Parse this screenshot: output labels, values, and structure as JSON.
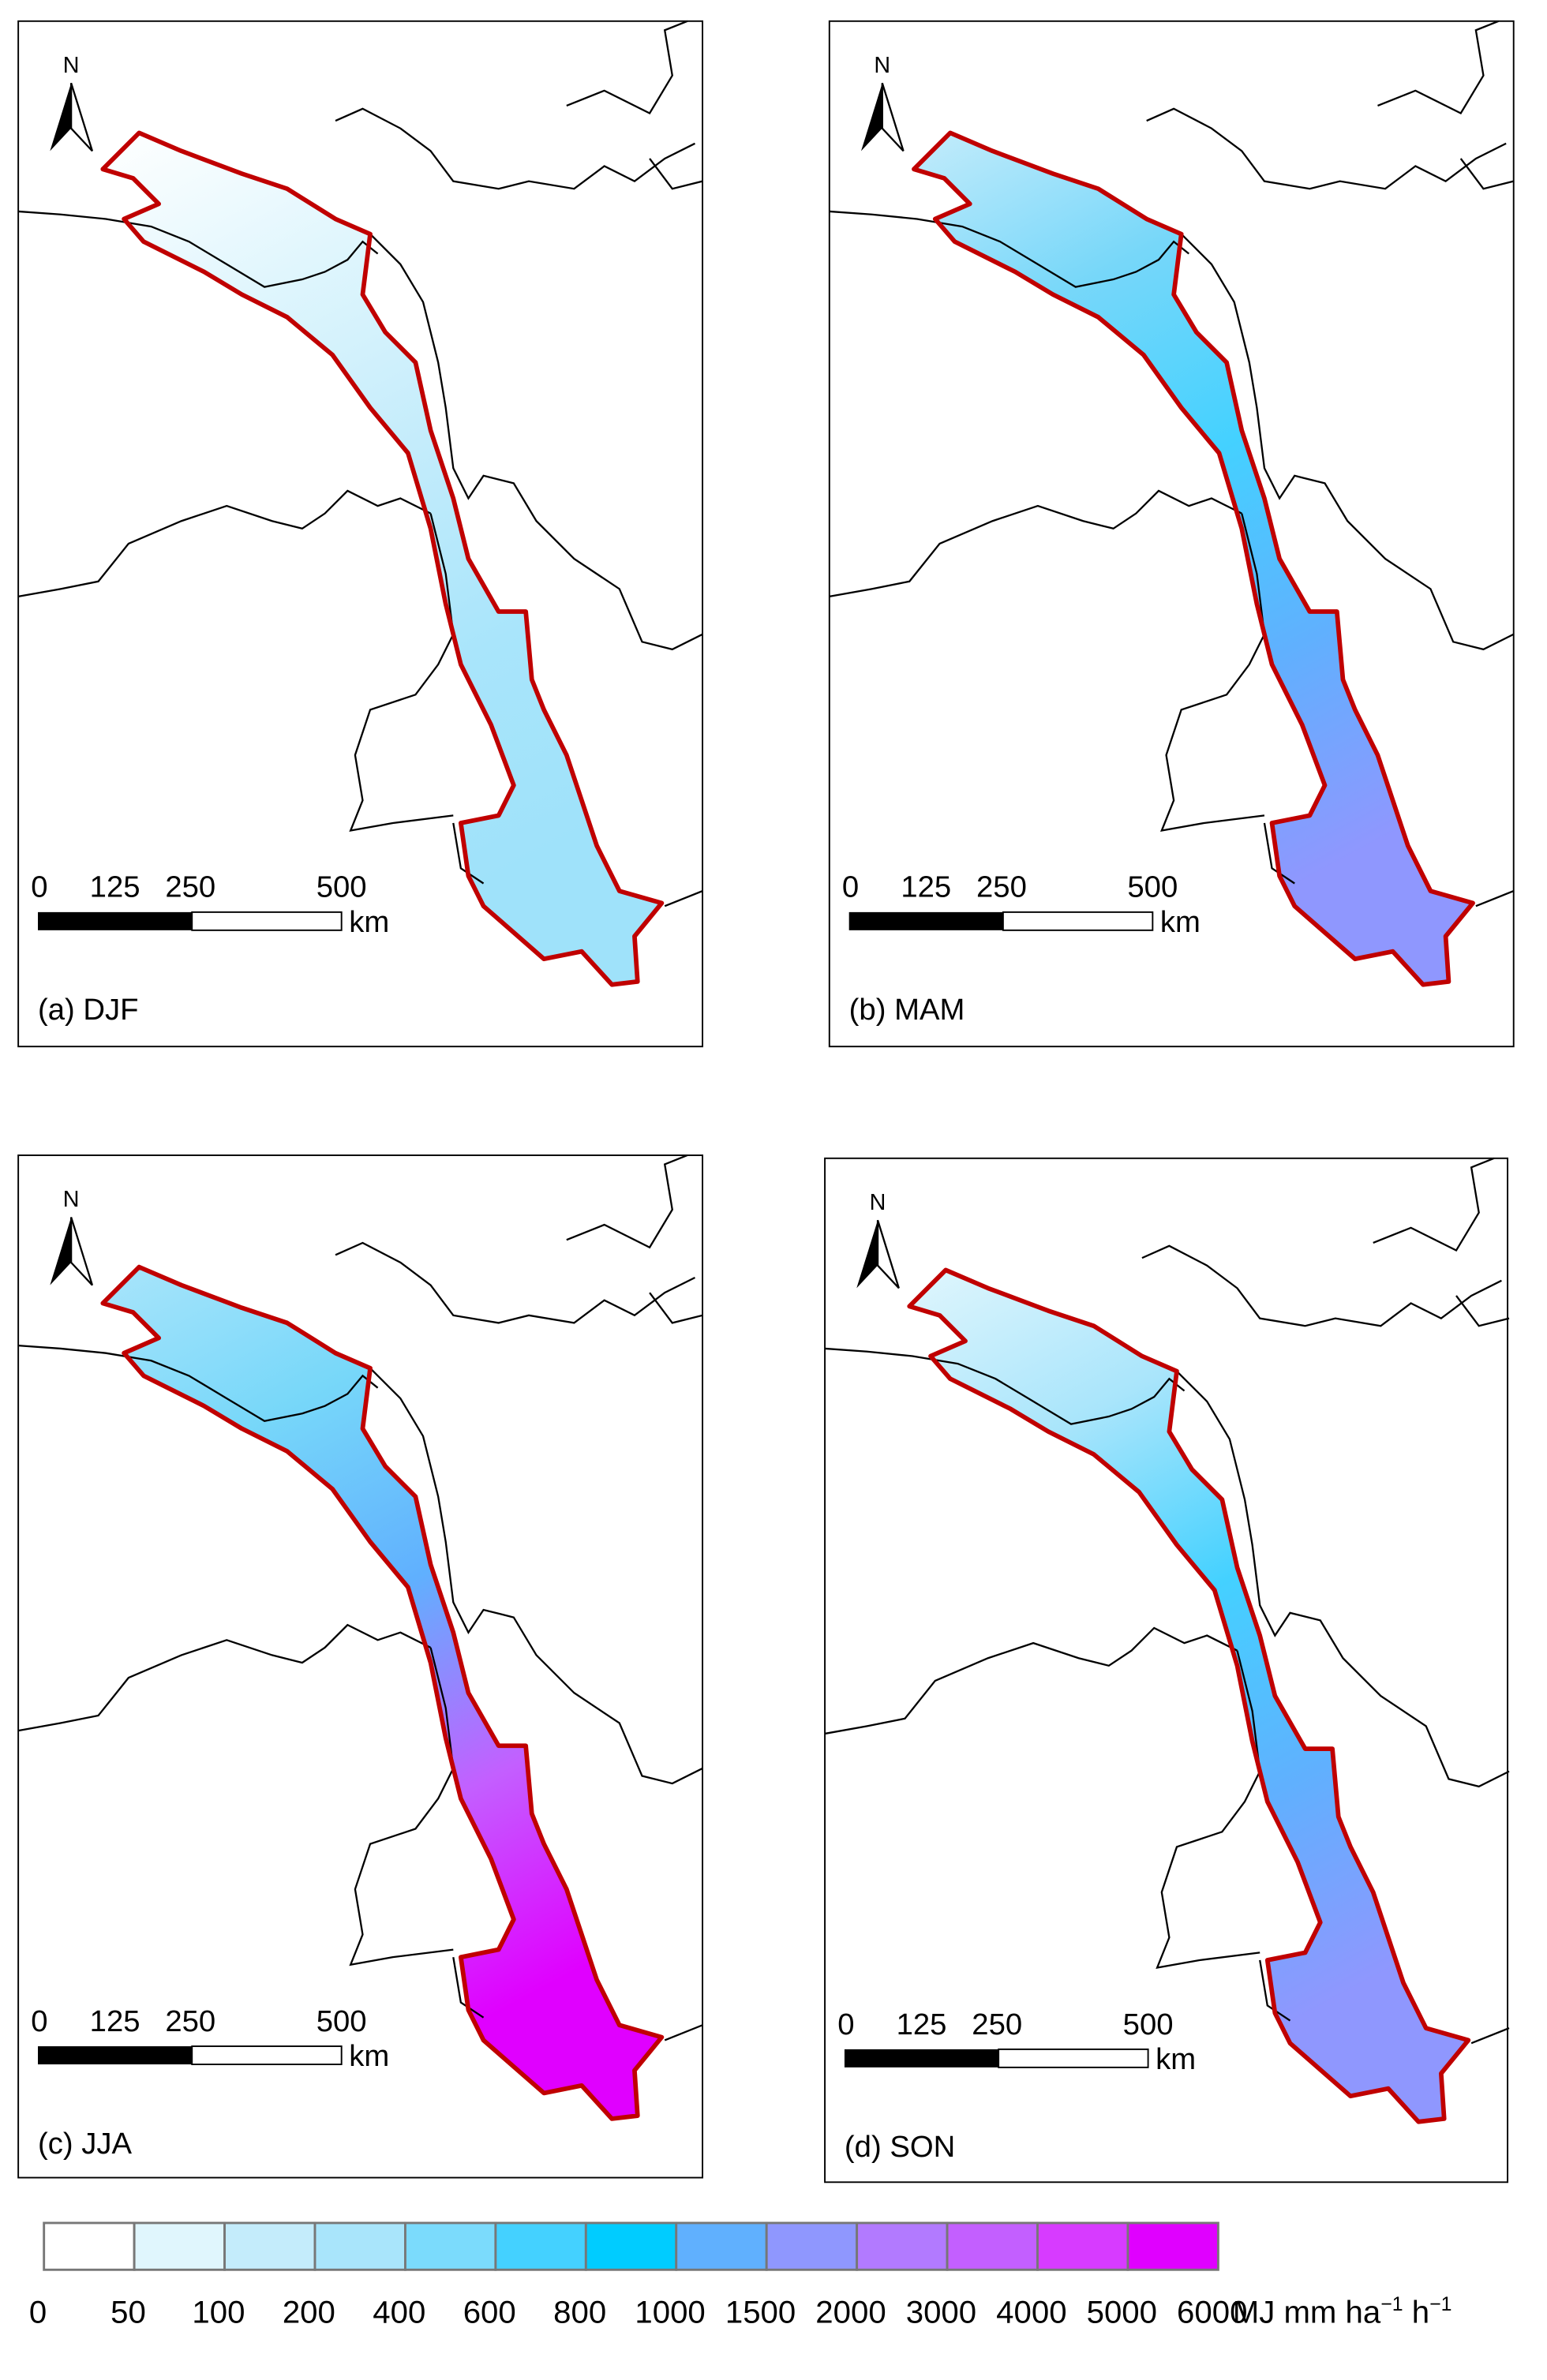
{
  "panels": [
    {
      "label": "(a) DJF",
      "stops": [
        "#ffffff",
        "#e0f6fd",
        "#c4ecfb",
        "#a9e5fb",
        "#9fe2fa"
      ]
    },
    {
      "label": "(b) MAM",
      "stops": [
        "#c4ecfb",
        "#77d7f9",
        "#44d1ff",
        "#60b0fe",
        "#8f97fe"
      ]
    },
    {
      "label": "(c) JJA",
      "stops": [
        "#a9e5fb",
        "#77d7f9",
        "#60b0fe",
        "#c35fff",
        "#e000ff"
      ]
    },
    {
      "label": "(d) SON",
      "stops": [
        "#e0f6fd",
        "#a9e5fb",
        "#44d1ff",
        "#60b0fe",
        "#8f97fe"
      ]
    }
  ],
  "north_arrow": {
    "label": "N"
  },
  "scale_bar": {
    "ticks": [
      "0",
      "125",
      "250",
      "500"
    ],
    "unit": "km"
  },
  "legend": {
    "colors": [
      "#ffffff",
      "#e0f6fd",
      "#c4ecfb",
      "#a9e5fb",
      "#7bdbfc",
      "#44d1ff",
      "#00ccff",
      "#60b0fe",
      "#8f97fe",
      "#b27aff",
      "#c35fff",
      "#d73bff",
      "#e000ff"
    ],
    "ticks": [
      "0",
      "50",
      "100",
      "200",
      "400",
      "600",
      "800",
      "1000",
      "1500",
      "2000",
      "3000",
      "4000",
      "5000",
      "6000"
    ],
    "unit": "MJ mm ha",
    "unit_sup1": "−1",
    "unit_h": " h",
    "unit_sup2": "−1"
  },
  "boundary_color": "#c00000"
}
